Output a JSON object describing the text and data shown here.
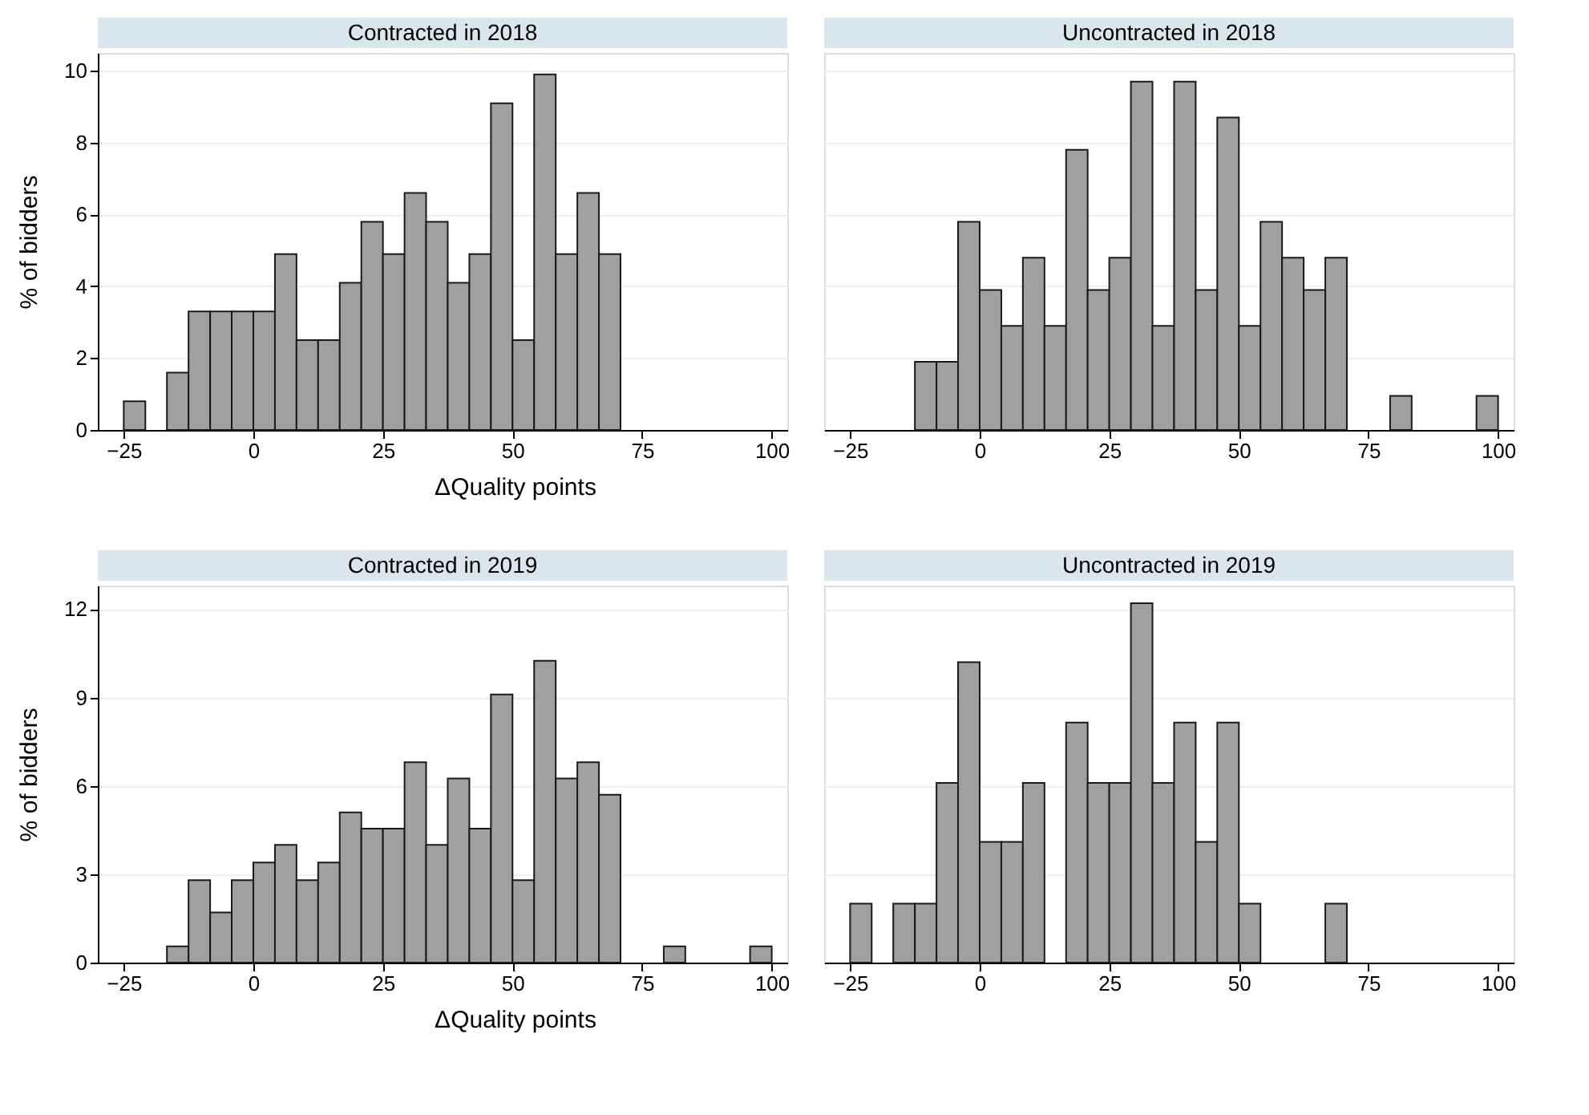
{
  "chart_data": [
    {
      "type": "histogram",
      "title": "Contracted in 2018",
      "xlabel": "ΔQuality points",
      "ylabel": "% of bidders",
      "color": "#a0a0a0",
      "grid": "y",
      "xlim": [
        -30,
        103
      ],
      "xticks": [
        -25,
        0,
        25,
        50,
        75,
        100
      ],
      "ylim": [
        0,
        10.5
      ],
      "yticks": [
        0,
        2,
        4,
        6,
        8,
        10
      ],
      "bins": [
        -25,
        -20.83,
        -16.67,
        -12.5,
        -8.33,
        -4.17,
        0,
        4.17,
        8.33,
        12.5,
        16.67,
        20.83,
        25,
        29.17,
        33.33,
        37.5,
        41.67,
        45.83,
        50,
        54.17,
        58.33,
        62.5,
        66.67,
        70.83,
        75,
        79.17,
        83.33,
        87.5,
        91.67,
        95.83,
        100
      ],
      "values": [
        0.8,
        0,
        1.6,
        3.3,
        3.3,
        3.3,
        3.3,
        4.9,
        2.5,
        2.5,
        4.1,
        5.8,
        4.9,
        6.6,
        5.8,
        4.1,
        4.9,
        9.1,
        2.5,
        9.9,
        4.9,
        6.6,
        4.9,
        0,
        0,
        0,
        0,
        0,
        0,
        0
      ]
    },
    {
      "type": "histogram",
      "title": "Uncontracted in 2018",
      "color": "#a0a0a0",
      "grid": "y",
      "tick_labels": "x",
      "xlim": [
        -30,
        103
      ],
      "xticks": [
        -25,
        0,
        25,
        50,
        75,
        100
      ],
      "ylim": [
        0,
        10.5
      ],
      "yticks": [
        0,
        2,
        4,
        6,
        8,
        10
      ],
      "bins": [
        -25,
        -20.83,
        -16.67,
        -12.5,
        -8.33,
        -4.17,
        0,
        4.17,
        8.33,
        12.5,
        16.67,
        20.83,
        25,
        29.17,
        33.33,
        37.5,
        41.67,
        45.83,
        50,
        54.17,
        58.33,
        62.5,
        66.67,
        70.83,
        75,
        79.17,
        83.33,
        87.5,
        91.67,
        95.83,
        100
      ],
      "values": [
        0,
        0,
        0,
        1.9,
        1.9,
        5.8,
        3.9,
        2.9,
        4.8,
        2.9,
        7.8,
        3.9,
        4.8,
        9.7,
        2.9,
        9.7,
        3.9,
        8.7,
        2.9,
        5.8,
        4.8,
        3.9,
        4.8,
        0,
        0,
        0.95,
        0,
        0,
        0,
        0.95
      ]
    },
    {
      "type": "histogram",
      "title": "Contracted in 2019",
      "xlabel": "ΔQuality points",
      "ylabel": "% of bidders",
      "color": "#a0a0a0",
      "grid": "y",
      "xlim": [
        -30,
        103
      ],
      "xticks": [
        -25,
        0,
        25,
        50,
        75,
        100
      ],
      "ylim": [
        0,
        12.8
      ],
      "yticks": [
        0,
        3,
        6,
        9,
        12
      ],
      "bins": [
        -25,
        -20.83,
        -16.67,
        -12.5,
        -8.33,
        -4.17,
        0,
        4.17,
        8.33,
        12.5,
        16.67,
        20.83,
        25,
        29.17,
        33.33,
        37.5,
        41.67,
        45.83,
        50,
        54.17,
        58.33,
        62.5,
        66.67,
        70.83,
        75,
        79.17,
        83.33,
        87.5,
        91.67,
        95.83,
        100
      ],
      "values": [
        0,
        0,
        0.55,
        2.8,
        1.7,
        2.8,
        3.4,
        4.0,
        2.8,
        3.4,
        5.1,
        4.55,
        4.55,
        6.8,
        4.0,
        6.25,
        4.55,
        9.1,
        2.8,
        10.25,
        6.25,
        6.8,
        5.7,
        0,
        0,
        0.55,
        0,
        0,
        0,
        0.55
      ]
    },
    {
      "type": "histogram",
      "title": "Uncontracted in 2019",
      "color": "#a0a0a0",
      "grid": "y",
      "tick_labels": "x",
      "xlim": [
        -30,
        103
      ],
      "xticks": [
        -25,
        0,
        25,
        50,
        75,
        100
      ],
      "ylim": [
        0,
        12.8
      ],
      "yticks": [
        0,
        3,
        6,
        9,
        12
      ],
      "bins": [
        -25,
        -20.83,
        -16.67,
        -12.5,
        -8.33,
        -4.17,
        0,
        4.17,
        8.33,
        12.5,
        16.67,
        20.83,
        25,
        29.17,
        33.33,
        37.5,
        41.67,
        45.83,
        50,
        54.17,
        58.33,
        62.5,
        66.67,
        70.83,
        75,
        79.17,
        83.33,
        87.5,
        91.67,
        95.83,
        100
      ],
      "values": [
        2.0,
        0,
        2.0,
        2.0,
        6.1,
        10.2,
        4.1,
        4.1,
        6.1,
        0,
        8.15,
        6.1,
        6.1,
        12.2,
        6.1,
        8.15,
        4.1,
        8.15,
        2.0,
        0,
        0,
        0,
        2.0,
        0,
        0,
        0,
        0,
        0,
        0,
        0
      ]
    }
  ]
}
